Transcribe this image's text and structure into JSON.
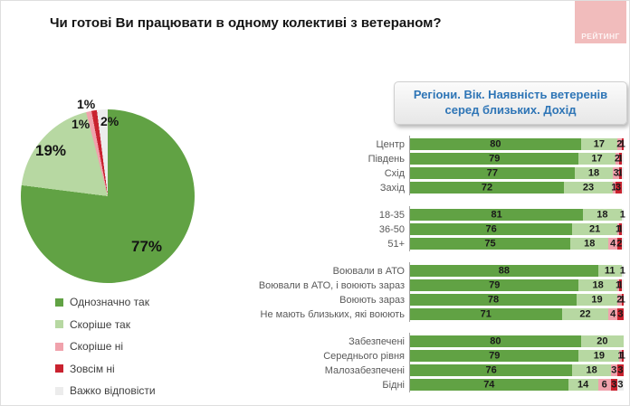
{
  "title": "Чи готові Ви працювати в одному колективі з ветераном?",
  "logo": {
    "text": "РЕЙТИНГ"
  },
  "panel_header": {
    "line1": "Регіони. Вік. Наявність ветеренів",
    "line2": "серед близьких. Дохід"
  },
  "colors": {
    "yes": "#61a244",
    "rather_yes": "#b7d8a2",
    "rather_no": "#f0a2ac",
    "no": "#c9222f",
    "dk": "#ececec"
  },
  "chart_data": [
    {
      "type": "pie",
      "title": "Чи готові Ви працювати в одному колективі з ветераном?",
      "legend_position": "bottom-left",
      "slices": [
        {
          "label": "Однозначно так",
          "value": 77,
          "pct_label": "77%",
          "color_key": "yes"
        },
        {
          "label": "Скоріше так",
          "value": 19,
          "pct_label": "19%",
          "color_key": "rather_yes"
        },
        {
          "label": "Скоріше ні",
          "value": 1,
          "pct_label": "1%",
          "color_key": "rather_no"
        },
        {
          "label": "Зовсім ні",
          "value": 1,
          "pct_label": "1%",
          "color_key": "no"
        },
        {
          "label": "Важко відповісти",
          "value": 2,
          "pct_label": "2%",
          "color_key": "dk"
        }
      ]
    },
    {
      "type": "bar",
      "orientation": "horizontal-stacked",
      "xlim": [
        0,
        100
      ],
      "header": "Регіони. Вік. Наявність ветеренів серед близьких. Дохід",
      "series_keys": [
        "yes",
        "rather_yes",
        "rather_no",
        "no",
        "dk"
      ],
      "groups": [
        {
          "name": "Регіони",
          "rows": [
            {
              "label": "Центр",
              "segments": [
                {
                  "v": 80,
                  "t": "80",
                  "k": "yes"
                },
                {
                  "v": 17,
                  "t": "17",
                  "k": "rather_yes"
                },
                {
                  "v": 2,
                  "t": "2",
                  "k": "rather_no"
                },
                {
                  "v": 1,
                  "t": "1",
                  "k": "no"
                }
              ]
            },
            {
              "label": "Південь",
              "segments": [
                {
                  "v": 79,
                  "t": "79",
                  "k": "yes"
                },
                {
                  "v": 17,
                  "t": "17",
                  "k": "rather_yes"
                },
                {
                  "v": 2,
                  "t": "2",
                  "k": "rather_no"
                },
                {
                  "v": 1,
                  "t": "1",
                  "k": "no"
                },
                {
                  "v": 1,
                  "t": "",
                  "k": "dk"
                }
              ]
            },
            {
              "label": "Схід",
              "segments": [
                {
                  "v": 77,
                  "t": "77",
                  "k": "yes"
                },
                {
                  "v": 18,
                  "t": "18",
                  "k": "rather_yes"
                },
                {
                  "v": 3,
                  "t": "3",
                  "k": "rather_no"
                },
                {
                  "v": 1,
                  "t": "1",
                  "k": "no"
                },
                {
                  "v": 1,
                  "t": "",
                  "k": "dk"
                }
              ]
            },
            {
              "label": "Захід",
              "segments": [
                {
                  "v": 72,
                  "t": "72",
                  "k": "yes"
                },
                {
                  "v": 23,
                  "t": "23",
                  "k": "rather_yes"
                },
                {
                  "v": 1,
                  "t": "1",
                  "k": "rather_no"
                },
                {
                  "v": 3,
                  "t": "3",
                  "k": "no"
                },
                {
                  "v": 1,
                  "t": "",
                  "k": "dk"
                }
              ]
            }
          ]
        },
        {
          "name": "Вік",
          "rows": [
            {
              "label": "18-35",
              "segments": [
                {
                  "v": 81,
                  "t": "81",
                  "k": "yes"
                },
                {
                  "v": 18,
                  "t": "18",
                  "k": "rather_yes"
                },
                {
                  "v": 1,
                  "t": "1",
                  "k": "dk"
                }
              ]
            },
            {
              "label": "36-50",
              "segments": [
                {
                  "v": 76,
                  "t": "76",
                  "k": "yes"
                },
                {
                  "v": 21,
                  "t": "21",
                  "k": "rather_yes"
                },
                {
                  "v": 1,
                  "t": "1",
                  "k": "rather_no"
                },
                {
                  "v": 1,
                  "t": "1",
                  "k": "no"
                },
                {
                  "v": 1,
                  "t": "",
                  "k": "dk"
                }
              ]
            },
            {
              "label": "51+",
              "segments": [
                {
                  "v": 75,
                  "t": "75",
                  "k": "yes"
                },
                {
                  "v": 18,
                  "t": "18",
                  "k": "rather_yes"
                },
                {
                  "v": 4,
                  "t": "4",
                  "k": "rather_no"
                },
                {
                  "v": 2,
                  "t": "2",
                  "k": "no"
                },
                {
                  "v": 1,
                  "t": "",
                  "k": "dk"
                }
              ]
            }
          ]
        },
        {
          "name": "Наявність ветеранів серед близьких",
          "rows": [
            {
              "label": "Воювали в АТО",
              "segments": [
                {
                  "v": 88,
                  "t": "88",
                  "k": "yes"
                },
                {
                  "v": 11,
                  "t": "11",
                  "k": "rather_yes"
                },
                {
                  "v": 1,
                  "t": "1",
                  "k": "dk"
                }
              ]
            },
            {
              "label": "Воювали в АТО, і воюють зараз",
              "segments": [
                {
                  "v": 79,
                  "t": "79",
                  "k": "yes"
                },
                {
                  "v": 18,
                  "t": "18",
                  "k": "rather_yes"
                },
                {
                  "v": 1,
                  "t": "1",
                  "k": "rather_no"
                },
                {
                  "v": 1,
                  "t": "1",
                  "k": "no"
                },
                {
                  "v": 1,
                  "t": "",
                  "k": "dk"
                }
              ]
            },
            {
              "label": "Воюють зараз",
              "segments": [
                {
                  "v": 78,
                  "t": "78",
                  "k": "yes"
                },
                {
                  "v": 19,
                  "t": "19",
                  "k": "rather_yes"
                },
                {
                  "v": 2,
                  "t": "2",
                  "k": "rather_no"
                },
                {
                  "v": 1,
                  "t": "1",
                  "k": "no"
                }
              ]
            },
            {
              "label": "Не мають близьких, які воюють",
              "segments": [
                {
                  "v": 71,
                  "t": "71",
                  "k": "yes"
                },
                {
                  "v": 22,
                  "t": "22",
                  "k": "rather_yes"
                },
                {
                  "v": 4,
                  "t": "4",
                  "k": "rather_no"
                },
                {
                  "v": 3,
                  "t": "3",
                  "k": "no"
                }
              ]
            }
          ]
        },
        {
          "name": "Дохід",
          "rows": [
            {
              "label": "Забезпечені",
              "segments": [
                {
                  "v": 80,
                  "t": "80",
                  "k": "yes"
                },
                {
                  "v": 20,
                  "t": "20",
                  "k": "rather_yes"
                }
              ]
            },
            {
              "label": "Середнього рівня",
              "segments": [
                {
                  "v": 79,
                  "t": "79",
                  "k": "yes"
                },
                {
                  "v": 19,
                  "t": "19",
                  "k": "rather_yes"
                },
                {
                  "v": 1,
                  "t": "1",
                  "k": "rather_no"
                },
                {
                  "v": 1,
                  "t": "1",
                  "k": "no"
                }
              ]
            },
            {
              "label": "Малозабезпечені",
              "segments": [
                {
                  "v": 76,
                  "t": "76",
                  "k": "yes"
                },
                {
                  "v": 18,
                  "t": "18",
                  "k": "rather_yes"
                },
                {
                  "v": 3,
                  "t": "3",
                  "k": "rather_no"
                },
                {
                  "v": 3,
                  "t": "3",
                  "k": "no"
                }
              ]
            },
            {
              "label": "Бідні",
              "segments": [
                {
                  "v": 74,
                  "t": "74",
                  "k": "yes"
                },
                {
                  "v": 14,
                  "t": "14",
                  "k": "rather_yes"
                },
                {
                  "v": 6,
                  "t": "6",
                  "k": "rather_no"
                },
                {
                  "v": 3,
                  "t": "3",
                  "k": "no"
                },
                {
                  "v": 3,
                  "t": "3",
                  "k": "dk"
                }
              ]
            }
          ]
        }
      ]
    }
  ]
}
